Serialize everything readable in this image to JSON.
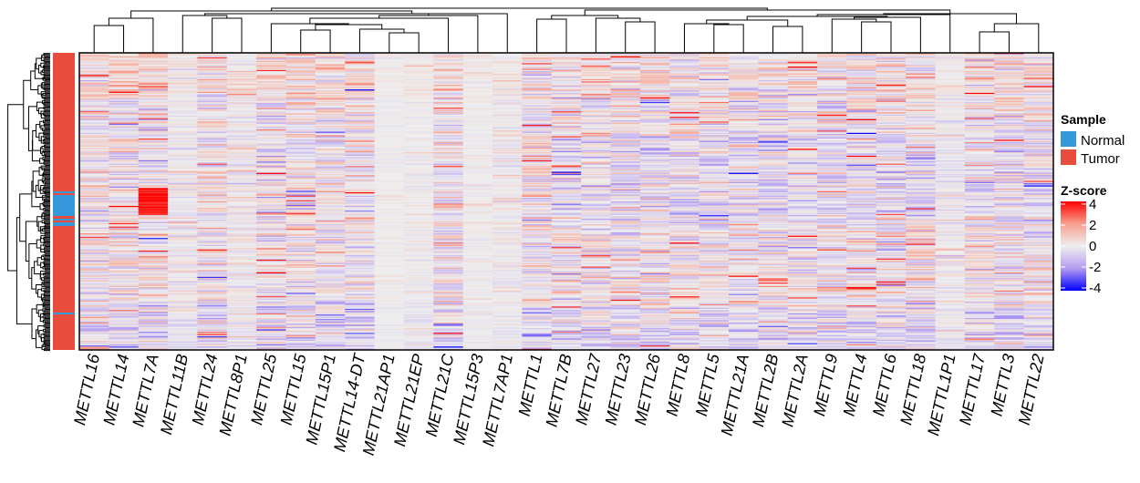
{
  "chart_data": {
    "type": "heatmap",
    "columns": [
      "METTL16",
      "METTL14",
      "METTL7A",
      "METTL11B",
      "METTL24",
      "METTL8P1",
      "METTL25",
      "METTL15",
      "METTL15P1",
      "METTL14-DT",
      "METTL21AP1",
      "METTL21EP",
      "METTL21C",
      "METTL15P3",
      "METTL7AP1",
      "METTL1",
      "METTL7B",
      "METTL27",
      "METTL23",
      "METTL26",
      "METTL8",
      "METTL5",
      "METTL21A",
      "METTL2B",
      "METTL2A",
      "METTL9",
      "METTL4",
      "METTL6",
      "METTL18",
      "METTL1P1",
      "METTL17",
      "METTL3",
      "METTL22"
    ],
    "row_dendrogram": true,
    "column_dendrogram": true,
    "annotation": {
      "title": "Sample",
      "levels": [
        {
          "name": "Normal",
          "color": "#3498DB"
        },
        {
          "name": "Tumor",
          "color": "#E74C3C"
        }
      ]
    },
    "colorbar": {
      "title": "Z-score",
      "ticks": [
        4,
        2,
        0,
        -2,
        -4
      ],
      "range": [
        -4,
        4
      ],
      "colors": {
        "low": "#0000FF",
        "mid": "#EEEEEE",
        "high": "#FF0000"
      }
    }
  }
}
